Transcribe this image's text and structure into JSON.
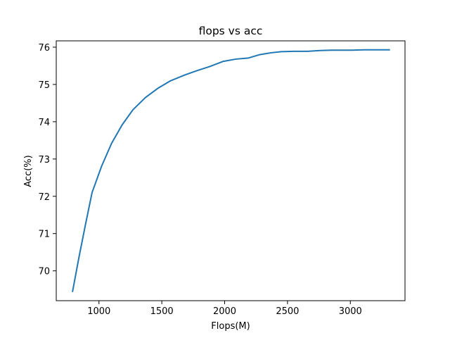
{
  "chart_data": {
    "type": "line",
    "title": "flops vs acc",
    "xlabel": "Flops(M)",
    "ylabel": "Acc(%)",
    "xlim": [
      660,
      3435
    ],
    "ylim": [
      69.2,
      76.17
    ],
    "xticks": [
      1000,
      1500,
      2000,
      2500,
      3000
    ],
    "yticks": [
      70,
      71,
      72,
      73,
      74,
      75,
      76
    ],
    "grid": false,
    "series": [
      {
        "color": "#1f77b4",
        "x": [
          790,
          840,
          890,
          945,
          1020,
          1100,
          1185,
          1270,
          1370,
          1470,
          1570,
          1680,
          1780,
          1880,
          1990,
          2090,
          2190,
          2280,
          2370,
          2450,
          2550,
          2660,
          2760,
          2850,
          2930,
          3010,
          3110,
          3210,
          3310
        ],
        "y": [
          69.45,
          70.35,
          71.2,
          72.1,
          72.8,
          73.42,
          73.92,
          74.32,
          74.65,
          74.9,
          75.1,
          75.25,
          75.37,
          75.48,
          75.62,
          75.68,
          75.71,
          75.8,
          75.85,
          75.88,
          75.89,
          75.89,
          75.91,
          75.92,
          75.92,
          75.92,
          75.93,
          75.93,
          75.93
        ]
      }
    ]
  }
}
